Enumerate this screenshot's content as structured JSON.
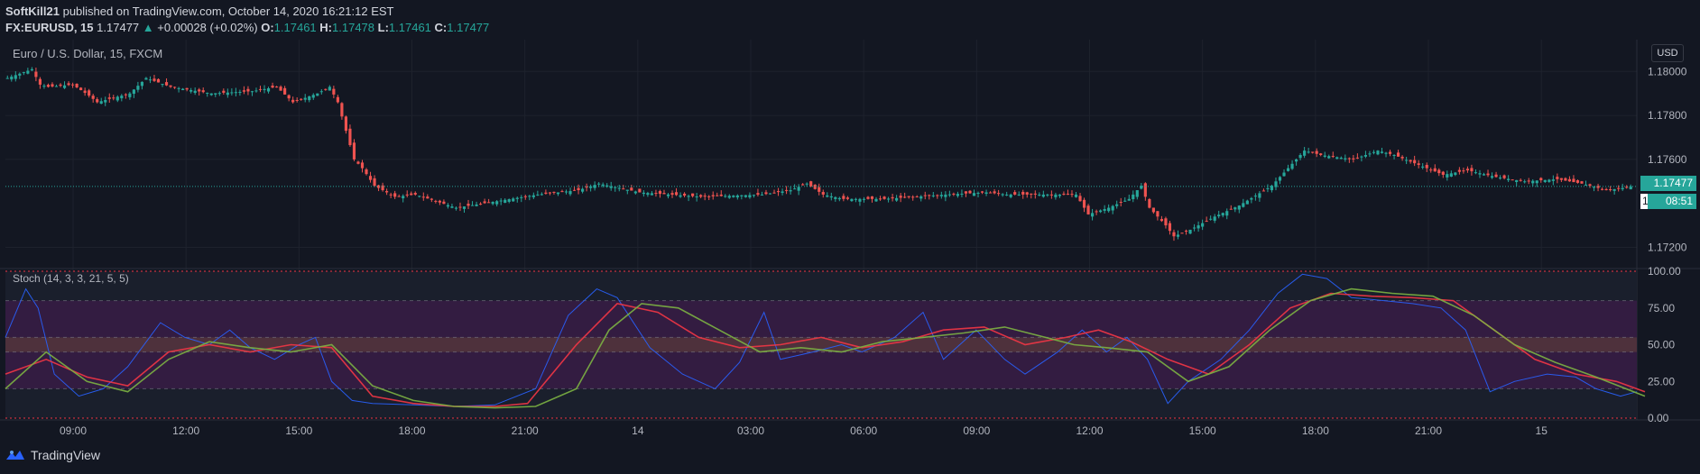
{
  "header": {
    "author": "SoftKill21",
    "published_text": "published on TradingView.com, October 14, 2020 16:21:12 EST",
    "symbol": "FX:EURUSD, 15",
    "last": "1.17477",
    "change": "+0.00028 (+0.02%)",
    "o_label": "O:",
    "o_val": "1.17461",
    "h_label": "H:",
    "h_val": "1.17478",
    "l_label": "L:",
    "l_val": "1.17461",
    "c_label": "C:",
    "c_val": "1.17477"
  },
  "toolbar": {
    "currency": "USD"
  },
  "footer": {
    "brand": "TradingView"
  },
  "colors": {
    "background": "#131722",
    "bull": "#26a69a",
    "bear": "#ef5350",
    "stoch_fast_k": "#2962ff",
    "stoch_fast_d": "#f23645",
    "stoch_slow_k": "#5d9cec",
    "stoch_slow_d": "#7cb342"
  },
  "chart_data": [
    {
      "type": "candlestick",
      "title": "Euro / U.S. Dollar, 15, FXCM",
      "ylim": [
        1.1712,
        1.1812
      ],
      "y_ticks": [
        "1.18000",
        "1.17800",
        "1.17600",
        "1.17200"
      ],
      "x_ticks": [
        "09:00",
        "12:00",
        "15:00",
        "18:00",
        "21:00",
        "14",
        "03:00",
        "06:00",
        "09:00",
        "12:00",
        "15:00",
        "18:00",
        "21:00",
        "15"
      ],
      "last_price_label": "1.17477",
      "countdown_label": "08:51",
      "partial_tick_label": "1.",
      "close_path": [
        [
          0,
          1.1797
        ],
        [
          6,
          1.1801
        ],
        [
          8,
          1.1794
        ],
        [
          10,
          1.1793
        ],
        [
          16,
          1.1794
        ],
        [
          20,
          1.1789
        ],
        [
          22,
          1.1786
        ],
        [
          30,
          1.179
        ],
        [
          34,
          1.1797
        ],
        [
          40,
          1.1793
        ],
        [
          50,
          1.179
        ],
        [
          60,
          1.1791
        ],
        [
          66,
          1.1793
        ],
        [
          70,
          1.1786
        ],
        [
          76,
          1.179
        ],
        [
          79,
          1.1793
        ],
        [
          81,
          1.1786
        ],
        [
          83,
          1.1773
        ],
        [
          85,
          1.176
        ],
        [
          87,
          1.1756
        ],
        [
          90,
          1.1748
        ],
        [
          95,
          1.1743
        ],
        [
          100,
          1.1744
        ],
        [
          105,
          1.1741
        ],
        [
          110,
          1.1738
        ],
        [
          120,
          1.1741
        ],
        [
          130,
          1.1744
        ],
        [
          140,
          1.1746
        ],
        [
          145,
          1.1749
        ],
        [
          155,
          1.1745
        ],
        [
          170,
          1.1743
        ],
        [
          185,
          1.1744
        ],
        [
          192,
          1.1746
        ],
        [
          196,
          1.1749
        ],
        [
          200,
          1.1744
        ],
        [
          205,
          1.1742
        ],
        [
          215,
          1.1742
        ],
        [
          230,
          1.1744
        ],
        [
          240,
          1.1745
        ],
        [
          245,
          1.1744
        ],
        [
          255,
          1.1744
        ],
        [
          262,
          1.1744
        ],
        [
          265,
          1.1735
        ],
        [
          270,
          1.1738
        ],
        [
          275,
          1.1742
        ],
        [
          278,
          1.1748
        ],
        [
          280,
          1.1738
        ],
        [
          284,
          1.173
        ],
        [
          286,
          1.1725
        ],
        [
          290,
          1.1728
        ],
        [
          296,
          1.1734
        ],
        [
          302,
          1.1739
        ],
        [
          310,
          1.1748
        ],
        [
          315,
          1.1758
        ],
        [
          318,
          1.1764
        ],
        [
          322,
          1.1762
        ],
        [
          330,
          1.176
        ],
        [
          336,
          1.1764
        ],
        [
          340,
          1.1762
        ],
        [
          344,
          1.1759
        ],
        [
          348,
          1.1756
        ],
        [
          352,
          1.1753
        ],
        [
          358,
          1.1755
        ],
        [
          365,
          1.1752
        ],
        [
          372,
          1.175
        ],
        [
          380,
          1.1751
        ],
        [
          386,
          1.1749
        ],
        [
          392,
          1.1746
        ],
        [
          396,
          1.1747
        ],
        [
          398,
          1.17477
        ]
      ]
    },
    {
      "type": "line",
      "title": "Stoch (14, 3, 3, 21, 5, 5)",
      "ylim": [
        0,
        100
      ],
      "y_ticks": [
        "100.00",
        "75.00",
        "50.00",
        "25.00",
        "0.00"
      ],
      "bands": [
        [
          0,
          100
        ],
        [
          80,
          20
        ],
        [
          55,
          45
        ]
      ],
      "series": [
        {
          "color": "#2962ff",
          "points": [
            [
              0,
              55
            ],
            [
              5,
              88
            ],
            [
              8,
              75
            ],
            [
              12,
              30
            ],
            [
              18,
              15
            ],
            [
              24,
              20
            ],
            [
              30,
              35
            ],
            [
              38,
              65
            ],
            [
              44,
              55
            ],
            [
              50,
              50
            ],
            [
              55,
              60
            ],
            [
              60,
              48
            ],
            [
              66,
              40
            ],
            [
              72,
              50
            ],
            [
              76,
              55
            ],
            [
              80,
              25
            ],
            [
              85,
              12
            ],
            [
              90,
              10
            ],
            [
              100,
              9
            ],
            [
              110,
              8
            ],
            [
              120,
              9
            ],
            [
              130,
              20
            ],
            [
              138,
              70
            ],
            [
              145,
              88
            ],
            [
              150,
              82
            ],
            [
              158,
              48
            ],
            [
              166,
              30
            ],
            [
              174,
              20
            ],
            [
              180,
              38
            ],
            [
              186,
              72
            ],
            [
              190,
              40
            ],
            [
              198,
              45
            ],
            [
              205,
              50
            ],
            [
              210,
              45
            ],
            [
              218,
              55
            ],
            [
              225,
              72
            ],
            [
              230,
              40
            ],
            [
              238,
              60
            ],
            [
              245,
              40
            ],
            [
              250,
              30
            ],
            [
              258,
              45
            ],
            [
              264,
              60
            ],
            [
              270,
              45
            ],
            [
              275,
              55
            ],
            [
              280,
              40
            ],
            [
              285,
              10
            ],
            [
              290,
              25
            ],
            [
              298,
              40
            ],
            [
              305,
              60
            ],
            [
              312,
              85
            ],
            [
              318,
              98
            ],
            [
              324,
              95
            ],
            [
              330,
              82
            ],
            [
              338,
              80
            ],
            [
              345,
              78
            ],
            [
              352,
              75
            ],
            [
              358,
              60
            ],
            [
              364,
              18
            ],
            [
              370,
              25
            ],
            [
              378,
              30
            ],
            [
              385,
              28
            ],
            [
              390,
              20
            ],
            [
              396,
              15
            ],
            [
              400,
              18
            ]
          ]
        },
        {
          "color": "#f23645",
          "points": [
            [
              0,
              30
            ],
            [
              10,
              40
            ],
            [
              20,
              28
            ],
            [
              30,
              22
            ],
            [
              40,
              45
            ],
            [
              50,
              50
            ],
            [
              60,
              45
            ],
            [
              70,
              50
            ],
            [
              80,
              48
            ],
            [
              90,
              15
            ],
            [
              100,
              10
            ],
            [
              110,
              8
            ],
            [
              120,
              8
            ],
            [
              128,
              10
            ],
            [
              140,
              50
            ],
            [
              150,
              78
            ],
            [
              160,
              72
            ],
            [
              170,
              55
            ],
            [
              180,
              48
            ],
            [
              190,
              50
            ],
            [
              200,
              55
            ],
            [
              210,
              48
            ],
            [
              220,
              52
            ],
            [
              230,
              60
            ],
            [
              240,
              62
            ],
            [
              250,
              50
            ],
            [
              260,
              55
            ],
            [
              268,
              60
            ],
            [
              276,
              52
            ],
            [
              285,
              40
            ],
            [
              295,
              30
            ],
            [
              305,
              50
            ],
            [
              315,
              75
            ],
            [
              325,
              85
            ],
            [
              335,
              83
            ],
            [
              345,
              82
            ],
            [
              355,
              80
            ],
            [
              365,
              60
            ],
            [
              375,
              40
            ],
            [
              385,
              30
            ],
            [
              395,
              25
            ],
            [
              402,
              18
            ]
          ]
        },
        {
          "color": "#7cb342",
          "points": [
            [
              0,
              20
            ],
            [
              10,
              45
            ],
            [
              20,
              25
            ],
            [
              30,
              18
            ],
            [
              40,
              40
            ],
            [
              50,
              52
            ],
            [
              60,
              48
            ],
            [
              70,
              45
            ],
            [
              80,
              50
            ],
            [
              90,
              22
            ],
            [
              100,
              12
            ],
            [
              110,
              8
            ],
            [
              120,
              7
            ],
            [
              130,
              8
            ],
            [
              140,
              20
            ],
            [
              148,
              60
            ],
            [
              156,
              78
            ],
            [
              165,
              75
            ],
            [
              175,
              60
            ],
            [
              185,
              45
            ],
            [
              195,
              48
            ],
            [
              205,
              45
            ],
            [
              215,
              52
            ],
            [
              225,
              55
            ],
            [
              235,
              58
            ],
            [
              245,
              62
            ],
            [
              255,
              55
            ],
            [
              262,
              50
            ],
            [
              270,
              48
            ],
            [
              280,
              45
            ],
            [
              290,
              25
            ],
            [
              300,
              35
            ],
            [
              310,
              60
            ],
            [
              320,
              80
            ],
            [
              330,
              88
            ],
            [
              340,
              85
            ],
            [
              350,
              83
            ],
            [
              360,
              70
            ],
            [
              370,
              50
            ],
            [
              380,
              38
            ],
            [
              390,
              28
            ],
            [
              402,
              15
            ]
          ]
        }
      ]
    }
  ]
}
